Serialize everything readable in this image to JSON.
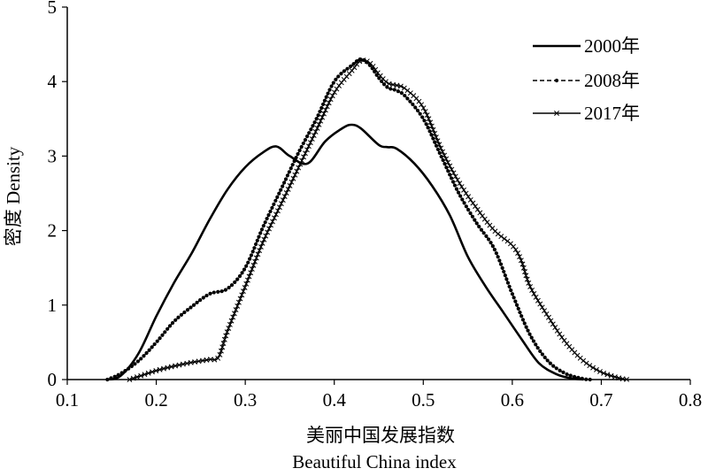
{
  "chart_data": {
    "type": "line",
    "title": "",
    "xlabel": "美丽中国发展指数",
    "xlabel_en": "Beautiful China index",
    "ylabel": "密度 Density",
    "xlim": [
      0.1,
      0.8
    ],
    "ylim": [
      0,
      5
    ],
    "x_ticks": [
      "0.1",
      "0.2",
      "0.3",
      "0.4",
      "0.5",
      "0.6",
      "0.7",
      "0.8"
    ],
    "y_ticks": [
      "0",
      "1",
      "2",
      "3",
      "4",
      "5"
    ],
    "grid": false,
    "legend_position": "top-right",
    "series": [
      {
        "name": "2000年",
        "line_style": "solid",
        "marker": "none",
        "x": [
          0.145,
          0.16,
          0.18,
          0.2,
          0.22,
          0.24,
          0.26,
          0.28,
          0.3,
          0.32,
          0.335,
          0.35,
          0.37,
          0.39,
          0.41,
          0.42,
          0.43,
          0.45,
          0.46,
          0.47,
          0.49,
          0.51,
          0.53,
          0.55,
          0.57,
          0.59,
          0.61,
          0.63,
          0.65,
          0.665,
          0.68
        ],
        "values": [
          0.0,
          0.05,
          0.35,
          0.85,
          1.3,
          1.7,
          2.15,
          2.55,
          2.85,
          3.05,
          3.13,
          3.0,
          2.9,
          3.2,
          3.38,
          3.42,
          3.37,
          3.15,
          3.12,
          3.1,
          2.9,
          2.6,
          2.2,
          1.65,
          1.25,
          0.9,
          0.55,
          0.22,
          0.07,
          0.02,
          0.0
        ]
      },
      {
        "name": "2008年",
        "line_style": "dashed",
        "marker": "dot",
        "x": [
          0.145,
          0.16,
          0.18,
          0.2,
          0.22,
          0.24,
          0.26,
          0.28,
          0.3,
          0.32,
          0.34,
          0.36,
          0.38,
          0.4,
          0.42,
          0.43,
          0.44,
          0.45,
          0.46,
          0.47,
          0.48,
          0.5,
          0.52,
          0.54,
          0.56,
          0.58,
          0.6,
          0.62,
          0.64,
          0.66,
          0.68,
          0.69
        ],
        "values": [
          0.0,
          0.08,
          0.25,
          0.5,
          0.78,
          0.98,
          1.15,
          1.22,
          1.5,
          2.05,
          2.55,
          3.05,
          3.5,
          4.0,
          4.22,
          4.3,
          4.22,
          4.05,
          3.92,
          3.88,
          3.8,
          3.5,
          3.0,
          2.5,
          2.1,
          1.75,
          1.15,
          0.6,
          0.25,
          0.08,
          0.01,
          0.0
        ]
      },
      {
        "name": "2017年",
        "line_style": "solid",
        "marker": "cross",
        "x": [
          0.17,
          0.18,
          0.2,
          0.22,
          0.24,
          0.26,
          0.27,
          0.28,
          0.3,
          0.32,
          0.34,
          0.36,
          0.38,
          0.4,
          0.42,
          0.43,
          0.44,
          0.45,
          0.46,
          0.47,
          0.48,
          0.5,
          0.52,
          0.54,
          0.56,
          0.58,
          0.6,
          0.61,
          0.62,
          0.64,
          0.66,
          0.68,
          0.7,
          0.72,
          0.73
        ],
        "values": [
          0.0,
          0.04,
          0.12,
          0.18,
          0.23,
          0.27,
          0.3,
          0.65,
          1.25,
          1.85,
          2.35,
          2.85,
          3.35,
          3.85,
          4.15,
          4.28,
          4.25,
          4.1,
          3.98,
          3.95,
          3.9,
          3.65,
          3.1,
          2.65,
          2.3,
          2.0,
          1.8,
          1.6,
          1.25,
          0.85,
          0.5,
          0.25,
          0.1,
          0.02,
          0.0
        ]
      }
    ]
  }
}
